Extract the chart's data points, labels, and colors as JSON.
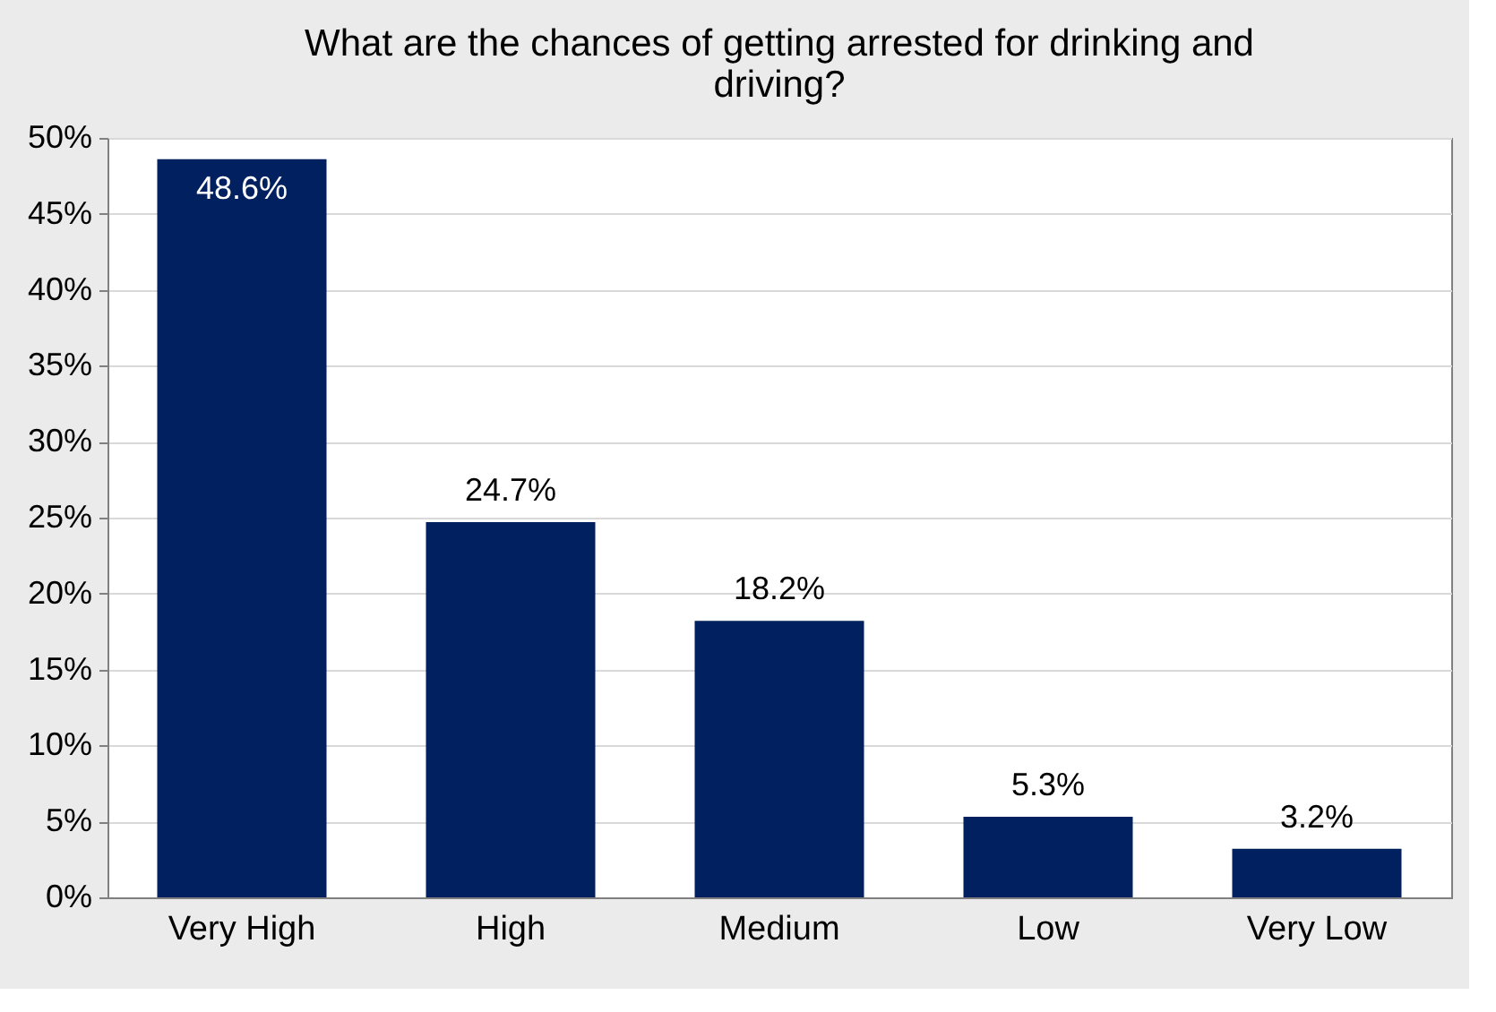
{
  "chart_data": {
    "type": "bar",
    "title": "What are the chances of getting arrested for drinking and driving?",
    "categories": [
      "Very High",
      "High",
      "Medium",
      "Low",
      "Very Low"
    ],
    "values": [
      48.6,
      24.7,
      18.2,
      5.3,
      3.2
    ],
    "value_labels": [
      "48.6%",
      "24.7%",
      "18.2%",
      "5.3%",
      "3.2%"
    ],
    "color": "#002060",
    "ylim": [
      0,
      50
    ],
    "yticks": [
      {
        "value": 0,
        "label": "0%"
      },
      {
        "value": 5,
        "label": "5%"
      },
      {
        "value": 10,
        "label": "10%"
      },
      {
        "value": 15,
        "label": "15%"
      },
      {
        "value": 20,
        "label": "20%"
      },
      {
        "value": 25,
        "label": "25%"
      },
      {
        "value": 30,
        "label": "30%"
      },
      {
        "value": 35,
        "label": "35%"
      },
      {
        "value": 40,
        "label": "40%"
      },
      {
        "value": 45,
        "label": "45%"
      },
      {
        "value": 50,
        "label": "50%"
      }
    ],
    "grid": "y"
  }
}
